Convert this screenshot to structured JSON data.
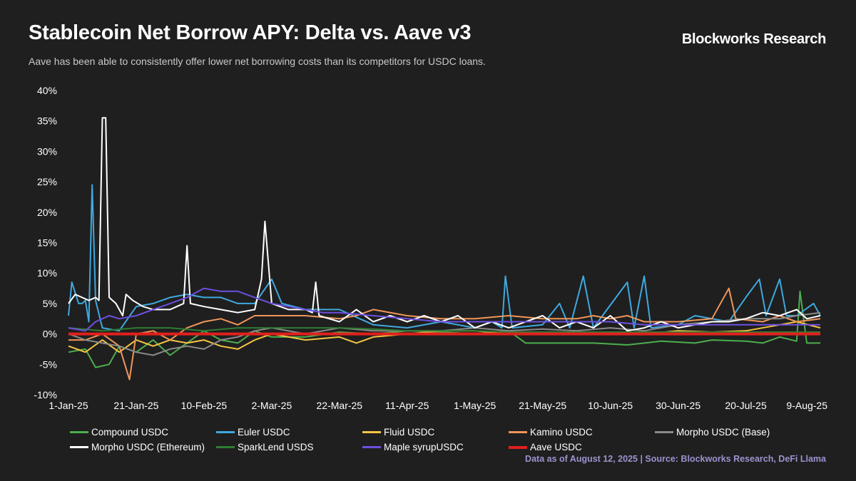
{
  "header": {
    "title": "Stablecoin Net Borrow APY: Delta vs. Aave v3",
    "brand": "Blockworks Research",
    "subtitle": "Aave has been able to consistently offer lower net borrowing costs than its competitors for USDC loans."
  },
  "footer": {
    "source": "Data as of August 12, 2025 | Source: Blockworks Research, DeFi Llama"
  },
  "chart_data": {
    "type": "line",
    "title": "Stablecoin Net Borrow APY: Delta vs. Aave v3",
    "xlabel": "",
    "ylabel": "",
    "ylim": [
      -10,
      40
    ],
    "yticks": [
      "40%",
      "35%",
      "30%",
      "25%",
      "20%",
      "15%",
      "10%",
      "5%",
      "0%",
      "-5%",
      "-10%"
    ],
    "xticks": [
      "1-Jan-25",
      "21-Jan-25",
      "10-Feb-25",
      "2-Mar-25",
      "22-Mar-25",
      "11-Apr-25",
      "1-May-25",
      "21-May-25",
      "10-Jun-25",
      "30-Jun-25",
      "20-Jul-25",
      "9-Aug-25"
    ],
    "x_start": "2025-01-01",
    "x_end": "2025-08-10",
    "grid": false,
    "legend_position": "bottom",
    "series": [
      {
        "name": "Compound USDC",
        "color": "#4cae4c",
        "width": 2,
        "points": [
          [
            0,
            -3
          ],
          [
            5,
            -2.5
          ],
          [
            8,
            -5.5
          ],
          [
            12,
            -5
          ],
          [
            15,
            -2
          ],
          [
            20,
            -3
          ],
          [
            25,
            -1
          ],
          [
            30,
            -3.5
          ],
          [
            35,
            -1.5
          ],
          [
            40,
            0.5
          ],
          [
            45,
            -1
          ],
          [
            50,
            -1.5
          ],
          [
            55,
            0.5
          ],
          [
            60,
            -0.5
          ],
          [
            70,
            -0.5
          ],
          [
            80,
            0.3
          ],
          [
            90,
            0
          ],
          [
            100,
            0.5
          ],
          [
            110,
            0.3
          ],
          [
            120,
            0
          ],
          [
            130,
            0.5
          ],
          [
            135,
            -1.5
          ],
          [
            145,
            -1.5
          ],
          [
            155,
            -1.5
          ],
          [
            165,
            -1.8
          ],
          [
            175,
            -1.2
          ],
          [
            185,
            -1.5
          ],
          [
            190,
            -1
          ],
          [
            200,
            -1.2
          ],
          [
            205,
            -1.5
          ],
          [
            210,
            -0.5
          ],
          [
            215,
            -1.2
          ],
          [
            216,
            7
          ],
          [
            218,
            -1.5
          ],
          [
            222,
            -1.5
          ]
        ]
      },
      {
        "name": "Euler USDC",
        "color": "#3fa9e0",
        "width": 2,
        "points": [
          [
            0,
            3
          ],
          [
            1,
            8.5
          ],
          [
            3,
            5
          ],
          [
            4,
            5
          ],
          [
            5,
            5.5
          ],
          [
            6,
            2
          ],
          [
            7,
            24.5
          ],
          [
            8,
            5.5
          ],
          [
            10,
            1
          ],
          [
            15,
            0.5
          ],
          [
            20,
            4.5
          ],
          [
            25,
            5
          ],
          [
            30,
            6
          ],
          [
            35,
            6.5
          ],
          [
            40,
            6
          ],
          [
            45,
            6
          ],
          [
            50,
            5
          ],
          [
            55,
            5
          ],
          [
            60,
            9
          ],
          [
            63,
            5
          ],
          [
            70,
            4
          ],
          [
            80,
            4
          ],
          [
            90,
            1.5
          ],
          [
            100,
            1
          ],
          [
            110,
            2
          ],
          [
            120,
            1
          ],
          [
            125,
            2
          ],
          [
            128,
            1
          ],
          [
            129,
            9.5
          ],
          [
            131,
            1
          ],
          [
            140,
            1.5
          ],
          [
            145,
            5
          ],
          [
            148,
            1
          ],
          [
            152,
            9.5
          ],
          [
            155,
            1
          ],
          [
            165,
            8.5
          ],
          [
            167,
            1
          ],
          [
            170,
            9.5
          ],
          [
            172,
            1
          ],
          [
            180,
            1.5
          ],
          [
            185,
            3
          ],
          [
            195,
            2
          ],
          [
            200,
            6
          ],
          [
            204,
            9
          ],
          [
            206,
            3
          ],
          [
            210,
            9
          ],
          [
            212,
            3
          ],
          [
            215,
            3
          ],
          [
            220,
            5
          ],
          [
            222,
            3
          ]
        ]
      },
      {
        "name": "Fluid USDC",
        "color": "#f4c542",
        "width": 2,
        "points": [
          [
            0,
            -2
          ],
          [
            5,
            -3
          ],
          [
            10,
            -1
          ],
          [
            15,
            -3
          ],
          [
            20,
            -1
          ],
          [
            25,
            -2
          ],
          [
            30,
            -1
          ],
          [
            35,
            -1.5
          ],
          [
            40,
            -1
          ],
          [
            45,
            -2
          ],
          [
            50,
            -2.5
          ],
          [
            55,
            -1
          ],
          [
            60,
            0
          ],
          [
            70,
            -1
          ],
          [
            80,
            -0.5
          ],
          [
            85,
            -1.5
          ],
          [
            90,
            -0.5
          ],
          [
            100,
            0
          ],
          [
            110,
            0.5
          ],
          [
            120,
            0.5
          ],
          [
            130,
            0
          ],
          [
            140,
            0.2
          ],
          [
            150,
            0
          ],
          [
            160,
            0.3
          ],
          [
            170,
            0
          ],
          [
            180,
            0.5
          ],
          [
            190,
            0.3
          ],
          [
            200,
            0.5
          ],
          [
            210,
            1.5
          ],
          [
            215,
            2
          ],
          [
            222,
            1
          ]
        ]
      },
      {
        "name": "Kamino USDC",
        "color": "#f0955a",
        "width": 2,
        "points": [
          [
            0,
            -1
          ],
          [
            5,
            -1
          ],
          [
            10,
            0
          ],
          [
            15,
            -2
          ],
          [
            18,
            -7.5
          ],
          [
            20,
            0
          ],
          [
            25,
            0.5
          ],
          [
            30,
            -1
          ],
          [
            35,
            1
          ],
          [
            40,
            2
          ],
          [
            45,
            2.5
          ],
          [
            50,
            1.5
          ],
          [
            55,
            3
          ],
          [
            60,
            3
          ],
          [
            70,
            3
          ],
          [
            80,
            2.5
          ],
          [
            85,
            3
          ],
          [
            90,
            4
          ],
          [
            100,
            3
          ],
          [
            110,
            2.5
          ],
          [
            120,
            2.5
          ],
          [
            130,
            3
          ],
          [
            140,
            2.5
          ],
          [
            150,
            2.5
          ],
          [
            155,
            3
          ],
          [
            160,
            2.5
          ],
          [
            165,
            3
          ],
          [
            170,
            2
          ],
          [
            180,
            2
          ],
          [
            190,
            2.5
          ],
          [
            195,
            7.5
          ],
          [
            197,
            2.5
          ],
          [
            205,
            2
          ],
          [
            210,
            3
          ],
          [
            215,
            2
          ],
          [
            222,
            2.5
          ]
        ]
      },
      {
        "name": "Morpho USDC (Base)",
        "color": "#8a8a8a",
        "width": 2,
        "points": [
          [
            0,
            0
          ],
          [
            5,
            -1
          ],
          [
            10,
            -1.5
          ],
          [
            15,
            -2
          ],
          [
            20,
            -3
          ],
          [
            25,
            -3.5
          ],
          [
            30,
            -2.5
          ],
          [
            35,
            -2
          ],
          [
            40,
            -2.5
          ],
          [
            45,
            -1
          ],
          [
            50,
            -0.5
          ],
          [
            55,
            0.5
          ],
          [
            60,
            1
          ],
          [
            70,
            0
          ],
          [
            80,
            1
          ],
          [
            90,
            0.5
          ],
          [
            100,
            0.5
          ],
          [
            110,
            0.5
          ],
          [
            120,
            1
          ],
          [
            130,
            0.5
          ],
          [
            140,
            0.8
          ],
          [
            150,
            0.5
          ],
          [
            160,
            1
          ],
          [
            170,
            0.5
          ],
          [
            180,
            1.5
          ],
          [
            190,
            2
          ],
          [
            200,
            2.5
          ],
          [
            210,
            2.5
          ],
          [
            215,
            3
          ],
          [
            222,
            3.5
          ]
        ]
      },
      {
        "name": "Morpho USDC (Ethereum)",
        "color": "#ffffff",
        "width": 2,
        "points": [
          [
            0,
            5
          ],
          [
            2,
            6.5
          ],
          [
            4,
            6
          ],
          [
            6,
            5.5
          ],
          [
            8,
            6
          ],
          [
            9,
            5.5
          ],
          [
            10,
            35.5
          ],
          [
            11,
            35.5
          ],
          [
            12,
            6
          ],
          [
            14,
            5
          ],
          [
            16,
            3
          ],
          [
            17,
            6.5
          ],
          [
            19,
            5.5
          ],
          [
            22,
            4.5
          ],
          [
            25,
            4
          ],
          [
            30,
            4
          ],
          [
            34,
            5
          ],
          [
            35,
            14.5
          ],
          [
            36,
            5
          ],
          [
            40,
            4.5
          ],
          [
            45,
            4
          ],
          [
            50,
            3.5
          ],
          [
            55,
            4
          ],
          [
            57,
            9
          ],
          [
            58,
            18.5
          ],
          [
            60,
            5
          ],
          [
            65,
            4
          ],
          [
            70,
            4
          ],
          [
            72,
            3.5
          ],
          [
            73,
            8.5
          ],
          [
            74,
            3
          ],
          [
            80,
            2
          ],
          [
            85,
            4
          ],
          [
            90,
            2
          ],
          [
            95,
            3
          ],
          [
            100,
            2
          ],
          [
            105,
            3
          ],
          [
            110,
            2
          ],
          [
            115,
            3
          ],
          [
            120,
            1
          ],
          [
            125,
            2
          ],
          [
            130,
            1
          ],
          [
            135,
            2
          ],
          [
            140,
            3
          ],
          [
            145,
            1
          ],
          [
            150,
            2
          ],
          [
            155,
            1
          ],
          [
            160,
            3
          ],
          [
            165,
            0.5
          ],
          [
            170,
            1
          ],
          [
            175,
            2
          ],
          [
            180,
            1
          ],
          [
            185,
            1.5
          ],
          [
            190,
            2
          ],
          [
            195,
            2
          ],
          [
            200,
            2.5
          ],
          [
            205,
            3.5
          ],
          [
            210,
            3
          ],
          [
            215,
            4
          ],
          [
            218,
            2.5
          ],
          [
            222,
            3
          ]
        ]
      },
      {
        "name": "SparkLend USDS",
        "color": "#2e7d32",
        "width": 2,
        "points": [
          [
            0,
            1
          ],
          [
            10,
            0.5
          ],
          [
            20,
            1
          ],
          [
            30,
            1
          ],
          [
            40,
            0.5
          ],
          [
            50,
            1
          ],
          [
            60,
            1
          ],
          [
            70,
            1
          ],
          [
            80,
            1
          ],
          [
            90,
            0.8
          ],
          [
            100,
            0.5
          ],
          [
            110,
            0.5
          ],
          [
            120,
            0.5
          ],
          [
            130,
            0.3
          ],
          [
            140,
            0.3
          ],
          [
            150,
            0.3
          ],
          [
            160,
            0.3
          ],
          [
            170,
            0.3
          ],
          [
            180,
            0.3
          ],
          [
            190,
            0.3
          ],
          [
            200,
            0.3
          ],
          [
            210,
            0.3
          ],
          [
            222,
            0.3
          ]
        ]
      },
      {
        "name": "Maple syrupUSDC",
        "color": "#6d4fe0",
        "width": 2,
        "points": [
          [
            0,
            1
          ],
          [
            5,
            0.5
          ],
          [
            8,
            2
          ],
          [
            12,
            3
          ],
          [
            15,
            2.5
          ],
          [
            20,
            3
          ],
          [
            25,
            4
          ],
          [
            30,
            5
          ],
          [
            35,
            6
          ],
          [
            40,
            7.5
          ],
          [
            45,
            7
          ],
          [
            50,
            7
          ],
          [
            55,
            6
          ],
          [
            60,
            5
          ],
          [
            65,
            4.5
          ],
          [
            70,
            4
          ],
          [
            75,
            3.5
          ],
          [
            80,
            3.5
          ],
          [
            90,
            3
          ],
          [
            100,
            2.5
          ],
          [
            110,
            2
          ],
          [
            120,
            2
          ],
          [
            130,
            2
          ],
          [
            140,
            2
          ],
          [
            150,
            2
          ],
          [
            160,
            2
          ],
          [
            170,
            1.5
          ],
          [
            180,
            1.5
          ],
          [
            190,
            1.5
          ],
          [
            200,
            1.5
          ],
          [
            210,
            1.5
          ],
          [
            222,
            1.5
          ]
        ]
      },
      {
        "name": "Aave USDC",
        "color": "#e0201c",
        "width": 4,
        "points": [
          [
            0,
            0
          ],
          [
            222,
            0
          ]
        ]
      }
    ]
  }
}
